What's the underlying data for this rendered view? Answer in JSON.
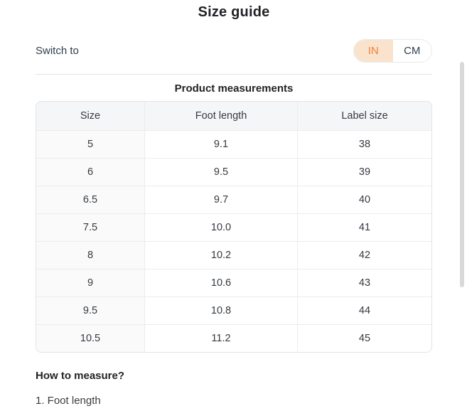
{
  "page": {
    "title": "Size guide",
    "switch_label": "Switch to",
    "unit_toggle": {
      "selected_bg": "#fae3cd",
      "selected_text_color": "#ee813c",
      "unselected_text_color": "#31404e",
      "options": [
        {
          "label": "IN",
          "selected": true
        },
        {
          "label": "CM",
          "selected": false
        }
      ]
    },
    "section_title": "Product measurements",
    "table": {
      "columns": [
        "Size",
        "Foot length",
        "Label size"
      ],
      "rows": [
        [
          "5",
          "9.1",
          "38"
        ],
        [
          "6",
          "9.5",
          "39"
        ],
        [
          "6.5",
          "9.7",
          "40"
        ],
        [
          "7.5",
          "10.0",
          "41"
        ],
        [
          "8",
          "10.2",
          "42"
        ],
        [
          "9",
          "10.6",
          "43"
        ],
        [
          "9.5",
          "10.8",
          "44"
        ],
        [
          "10.5",
          "11.2",
          "45"
        ]
      ]
    },
    "howto": {
      "heading": "How to measure?",
      "item_1": "1. Foot length"
    }
  }
}
